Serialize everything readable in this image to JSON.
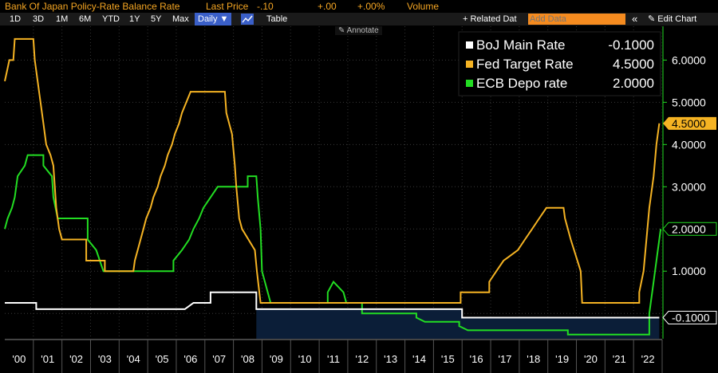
{
  "header": {
    "title": "Bank Of Japan Policy-Rate Balance Rate",
    "last_price_label": "Last Price",
    "last_price": "-.10",
    "change": "+.00",
    "change_pct": "+.00%",
    "volume_label": "Volume"
  },
  "toolbar": {
    "ranges": [
      "1D",
      "3D",
      "1M",
      "6M",
      "YTD",
      "1Y",
      "5Y",
      "Max"
    ],
    "frequency": "Daily ▼",
    "table_label": "Table",
    "related_label": "+ Related Dat",
    "add_data_placeholder": "Add Data",
    "collapse_label": "«",
    "edit_chart_label": "✎ Edit Chart",
    "annotate_label": "✎ Annotate"
  },
  "colors": {
    "boj": "#ffffff",
    "fed": "#f5b323",
    "ecb": "#22dd22",
    "axis": "#22dd22",
    "fill": "#0b1e38"
  },
  "chart_data": {
    "type": "line",
    "x_tick_labels": [
      "'00",
      "'01",
      "'02",
      "'03",
      "'04",
      "'05",
      "'06",
      "'07",
      "'08",
      "'09",
      "'10",
      "'11",
      "'12",
      "'13",
      "'14",
      "'15",
      "'16",
      "'17",
      "'18",
      "'19",
      "'20",
      "'21",
      "'22"
    ],
    "y_ticks": [
      "1.0000",
      "2.0000",
      "3.0000",
      "4.0000",
      "5.0000",
      "6.0000"
    ],
    "ylim": [
      -0.6,
      6.8
    ],
    "xlim": [
      2000.0,
      2023.0
    ],
    "grid": true,
    "legend_placement": "top-right",
    "series": [
      {
        "name": "BoJ Main Rate",
        "last": "-0.1000",
        "points": [
          [
            2000.0,
            0.25
          ],
          [
            2000.5,
            0.25
          ],
          [
            2000.5,
            0.25
          ],
          [
            2001.1,
            0.25
          ],
          [
            2001.1,
            0.1
          ],
          [
            2006.3,
            0.1
          ],
          [
            2006.6,
            0.25
          ],
          [
            2007.2,
            0.25
          ],
          [
            2007.2,
            0.5
          ],
          [
            2008.8,
            0.5
          ],
          [
            2008.8,
            0.1
          ],
          [
            2016.0,
            0.1
          ],
          [
            2016.0,
            -0.1
          ],
          [
            2022.9,
            -0.1
          ]
        ]
      },
      {
        "name": "Fed Target Rate",
        "last": "4.5000",
        "points": [
          [
            2000.0,
            5.5
          ],
          [
            2000.08,
            5.75
          ],
          [
            2000.16,
            6.0
          ],
          [
            2000.3,
            6.0
          ],
          [
            2000.35,
            6.5
          ],
          [
            2001.0,
            6.5
          ],
          [
            2001.05,
            6.0
          ],
          [
            2001.15,
            5.5
          ],
          [
            2001.25,
            5.0
          ],
          [
            2001.35,
            4.5
          ],
          [
            2001.45,
            4.0
          ],
          [
            2001.6,
            3.75
          ],
          [
            2001.7,
            3.5
          ],
          [
            2001.75,
            3.0
          ],
          [
            2001.8,
            2.5
          ],
          [
            2001.9,
            2.0
          ],
          [
            2002.0,
            1.75
          ],
          [
            2002.85,
            1.75
          ],
          [
            2002.85,
            1.25
          ],
          [
            2003.5,
            1.25
          ],
          [
            2003.5,
            1.0
          ],
          [
            2004.5,
            1.0
          ],
          [
            2004.55,
            1.25
          ],
          [
            2004.65,
            1.5
          ],
          [
            2004.75,
            1.75
          ],
          [
            2004.85,
            2.0
          ],
          [
            2004.95,
            2.25
          ],
          [
            2005.1,
            2.5
          ],
          [
            2005.2,
            2.75
          ],
          [
            2005.35,
            3.0
          ],
          [
            2005.45,
            3.25
          ],
          [
            2005.6,
            3.5
          ],
          [
            2005.7,
            3.75
          ],
          [
            2005.85,
            4.0
          ],
          [
            2005.95,
            4.25
          ],
          [
            2006.1,
            4.5
          ],
          [
            2006.2,
            4.75
          ],
          [
            2006.35,
            5.0
          ],
          [
            2006.5,
            5.25
          ],
          [
            2007.7,
            5.25
          ],
          [
            2007.75,
            4.75
          ],
          [
            2007.85,
            4.5
          ],
          [
            2007.95,
            4.25
          ],
          [
            2008.05,
            3.5
          ],
          [
            2008.1,
            3.0
          ],
          [
            2008.2,
            2.25
          ],
          [
            2008.3,
            2.0
          ],
          [
            2008.75,
            1.5
          ],
          [
            2008.82,
            1.0
          ],
          [
            2008.95,
            0.25
          ],
          [
            2015.95,
            0.25
          ],
          [
            2015.95,
            0.5
          ],
          [
            2016.95,
            0.5
          ],
          [
            2016.95,
            0.75
          ],
          [
            2017.2,
            1.0
          ],
          [
            2017.45,
            1.25
          ],
          [
            2017.95,
            1.5
          ],
          [
            2018.2,
            1.75
          ],
          [
            2018.45,
            2.0
          ],
          [
            2018.7,
            2.25
          ],
          [
            2018.95,
            2.5
          ],
          [
            2019.55,
            2.5
          ],
          [
            2019.6,
            2.25
          ],
          [
            2019.7,
            2.0
          ],
          [
            2019.8,
            1.75
          ],
          [
            2020.15,
            1.0
          ],
          [
            2020.2,
            0.25
          ],
          [
            2022.2,
            0.25
          ],
          [
            2022.2,
            0.5
          ],
          [
            2022.35,
            1.0
          ],
          [
            2022.45,
            1.75
          ],
          [
            2022.55,
            2.5
          ],
          [
            2022.7,
            3.25
          ],
          [
            2022.8,
            4.0
          ],
          [
            2022.9,
            4.5
          ]
        ]
      },
      {
        "name": "ECB Depo rate",
        "last": "2.0000",
        "points": [
          [
            2000.0,
            2.0
          ],
          [
            2000.1,
            2.25
          ],
          [
            2000.25,
            2.5
          ],
          [
            2000.35,
            2.75
          ],
          [
            2000.45,
            3.25
          ],
          [
            2000.7,
            3.5
          ],
          [
            2000.8,
            3.75
          ],
          [
            2001.35,
            3.75
          ],
          [
            2001.35,
            3.5
          ],
          [
            2001.65,
            3.25
          ],
          [
            2001.7,
            2.75
          ],
          [
            2001.85,
            2.25
          ],
          [
            2002.9,
            2.25
          ],
          [
            2002.9,
            1.75
          ],
          [
            2003.2,
            1.5
          ],
          [
            2003.45,
            1.0
          ],
          [
            2005.9,
            1.0
          ],
          [
            2005.9,
            1.25
          ],
          [
            2006.2,
            1.5
          ],
          [
            2006.45,
            1.75
          ],
          [
            2006.6,
            2.0
          ],
          [
            2006.8,
            2.25
          ],
          [
            2006.95,
            2.5
          ],
          [
            2007.45,
            3.0
          ],
          [
            2008.5,
            3.0
          ],
          [
            2008.5,
            3.25
          ],
          [
            2008.8,
            3.25
          ],
          [
            2008.85,
            2.75
          ],
          [
            2008.95,
            2.0
          ],
          [
            2009.0,
            1.0
          ],
          [
            2009.2,
            0.5
          ],
          [
            2009.3,
            0.25
          ],
          [
            2011.3,
            0.25
          ],
          [
            2011.3,
            0.5
          ],
          [
            2011.5,
            0.75
          ],
          [
            2011.85,
            0.5
          ],
          [
            2011.95,
            0.25
          ],
          [
            2012.5,
            0.25
          ],
          [
            2012.5,
            0.0
          ],
          [
            2014.4,
            0.0
          ],
          [
            2014.4,
            -0.1
          ],
          [
            2014.7,
            -0.2
          ],
          [
            2015.9,
            -0.2
          ],
          [
            2015.9,
            -0.3
          ],
          [
            2016.2,
            -0.4
          ],
          [
            2019.7,
            -0.4
          ],
          [
            2019.7,
            -0.5
          ],
          [
            2022.55,
            -0.5
          ],
          [
            2022.55,
            0.0
          ],
          [
            2022.7,
            0.75
          ],
          [
            2022.85,
            1.5
          ],
          [
            2022.95,
            2.0
          ]
        ]
      }
    ]
  }
}
